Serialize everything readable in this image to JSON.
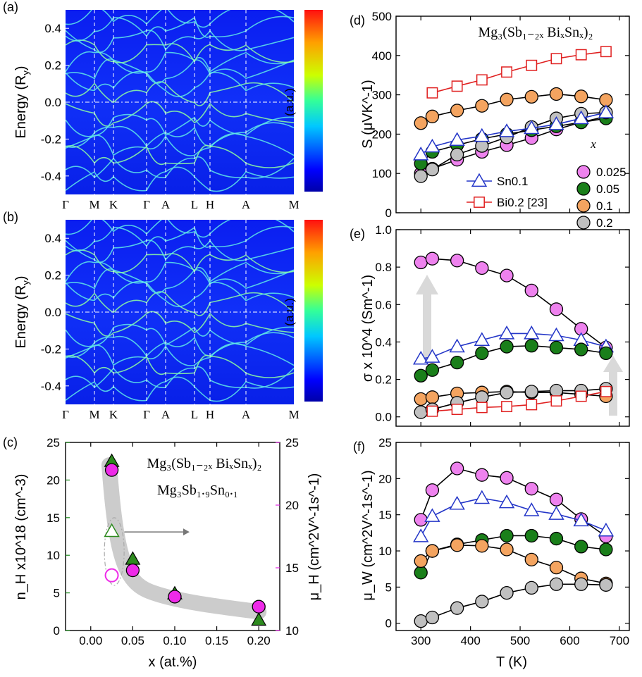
{
  "chart_data": [
    {
      "panel_label": "(a)",
      "type": "heatmap",
      "ylabel": "Energy (R",
      "ylabel_sub": "y",
      "ylim": [
        -0.5,
        0.5
      ],
      "yticks": [
        "0.4",
        "0.2",
        "0.0",
        "-0.2",
        "-0.4"
      ],
      "kpoints": [
        "Γ",
        "M",
        "K",
        "Γ",
        "A",
        "L",
        "H",
        "A",
        "M"
      ],
      "colorbar_label": "(a.u.)"
    },
    {
      "panel_label": "(b)",
      "type": "heatmap",
      "ylabel": "Energy (R",
      "ylabel_sub": "y",
      "ylim": [
        -0.5,
        0.5
      ],
      "yticks": [
        "0.4",
        "0.2",
        "0.0",
        "-0.2",
        "-0.4"
      ],
      "kpoints": [
        "Γ",
        "M",
        "K",
        "Γ",
        "A",
        "L",
        "H",
        "A",
        "M"
      ],
      "colorbar_label": "(a.u.)"
    },
    {
      "panel_label": "(c)",
      "type": "scatter",
      "title": "Mg₃(Sb₁₋₂ₓ BiₓSnₓ)₂",
      "xlabel": "x (at.%)",
      "ylabel_left": "n_H x10^18 (cm^-3)",
      "ylabel_right": "μ_H (cm^2V^-1s^-1)",
      "xlim": [
        -0.03,
        0.225
      ],
      "ylim_left": [
        0,
        25
      ],
      "ylim_right": [
        10,
        25
      ],
      "xticks": [
        "0.00",
        "0.05",
        "0.10",
        "0.15",
        "0.20"
      ],
      "yticks_left": [
        "0",
        "5",
        "10",
        "15",
        "20",
        "25"
      ],
      "yticks_right": [
        "10",
        "15",
        "20",
        "25"
      ],
      "annotation": "Mg₃Sb₁.₉Sn₀.₁",
      "series": [
        {
          "name": "n_H",
          "axis": "left",
          "color": "#2e8b1f",
          "marker": "triangle",
          "x": [
            0.025,
            0.05,
            0.1,
            0.2
          ],
          "y": [
            22.5,
            9.5,
            4.9,
            1.4
          ]
        },
        {
          "name": "μ_H",
          "axis": "right",
          "color": "#ee2ae8",
          "marker": "circle",
          "x": [
            0.025,
            0.05,
            0.1,
            0.2
          ],
          "y": [
            22.8,
            14.8,
            12.7,
            11.9
          ]
        },
        {
          "name": "Sn0.1 n_H",
          "axis": "left",
          "color": "#2e8b1f",
          "marker": "open-triangle",
          "x": [
            0.025
          ],
          "y": [
            13.2
          ]
        },
        {
          "name": "Sn0.1 μ_H",
          "axis": "right",
          "color": "#ee2ae8",
          "marker": "open-circle",
          "x": [
            0.025
          ],
          "y": [
            14.4
          ]
        }
      ]
    },
    {
      "panel_label": "(d)",
      "type": "line",
      "title": "Mg₃(Sb₁₋₂ₓ BiₓSnₓ)₂",
      "ylabel": "S (μVK^-1)",
      "xlim": [
        250,
        720
      ],
      "ylim": [
        0,
        500
      ],
      "yticks": [
        "0",
        "100",
        "200",
        "300",
        "400",
        "500"
      ],
      "legend_title": "x",
      "legend_position": "bottom-right",
      "x": [
        300,
        323,
        373,
        423,
        473,
        523,
        573,
        623,
        673
      ],
      "series": [
        {
          "name": "0.025",
          "color": "#ee82ee",
          "marker": "circle",
          "values": [
            100,
            112,
            135,
            155,
            172,
            190,
            212,
            230,
            245
          ]
        },
        {
          "name": "0.05",
          "color": "#1a7f1a",
          "marker": "circle",
          "values": [
            125,
            155,
            172,
            188,
            200,
            210,
            220,
            230,
            240
          ]
        },
        {
          "name": "0.1",
          "color": "#f4a460",
          "marker": "circle",
          "values": [
            228,
            245,
            260,
            272,
            288,
            295,
            302,
            296,
            287
          ]
        },
        {
          "name": "0.2",
          "color": "#c0c0c0",
          "marker": "circle",
          "values": [
            93,
            110,
            148,
            170,
            192,
            218,
            240,
            252,
            255
          ]
        },
        {
          "name": "Sn0.1",
          "color": "#2436c8",
          "marker": "open-triangle",
          "x": [
            300,
            323,
            373,
            423,
            473,
            523,
            573,
            623,
            673
          ],
          "values": [
            148,
            168,
            185,
            195,
            207,
            215,
            225,
            240,
            255
          ]
        },
        {
          "name": "Bi0.2 [23]",
          "color": "#e02020",
          "marker": "open-square",
          "x": [
            323,
            373,
            423,
            473,
            523,
            573,
            623,
            673
          ],
          "values": [
            305,
            322,
            338,
            358,
            375,
            392,
            402,
            410
          ]
        }
      ]
    },
    {
      "panel_label": "(e)",
      "type": "line",
      "ylabel": "σ x 10^4 (Sm^-1)",
      "xlim": [
        250,
        720
      ],
      "ylim": [
        -0.05,
        1.0
      ],
      "yticks": [
        "0.0",
        "0.2",
        "0.4",
        "0.6",
        "0.8",
        "1.0"
      ],
      "x": [
        300,
        323,
        373,
        423,
        473,
        523,
        573,
        623,
        673
      ],
      "series": [
        {
          "name": "0.025",
          "color": "#ee82ee",
          "marker": "circle",
          "values": [
            0.825,
            0.845,
            0.835,
            0.795,
            0.755,
            0.675,
            0.575,
            0.47,
            0.37
          ]
        },
        {
          "name": "Sn0.1",
          "color": "#2436c8",
          "marker": "open-triangle",
          "values": [
            0.31,
            0.32,
            0.375,
            0.41,
            0.445,
            0.445,
            0.435,
            0.41,
            0.375
          ]
        },
        {
          "name": "0.05",
          "color": "#1a7f1a",
          "marker": "circle",
          "values": [
            0.22,
            0.25,
            0.29,
            0.34,
            0.375,
            0.38,
            0.37,
            0.36,
            0.34
          ]
        },
        {
          "name": "0.1",
          "color": "#f4a460",
          "marker": "circle",
          "values": [
            0.095,
            0.105,
            0.125,
            0.13,
            0.135,
            0.13,
            0.13,
            0.12,
            0.11
          ]
        },
        {
          "name": "0.2",
          "color": "#c0c0c0",
          "marker": "circle",
          "values": [
            0.025,
            0.04,
            0.075,
            0.105,
            0.13,
            0.135,
            0.14,
            0.14,
            0.15
          ]
        },
        {
          "name": "Bi0.2 [23]",
          "color": "#e02020",
          "marker": "open-square",
          "x": [
            323,
            373,
            423,
            473,
            523,
            573,
            623,
            673
          ],
          "values": [
            0.03,
            0.04,
            0.05,
            0.055,
            0.065,
            0.085,
            0.11,
            0.135
          ]
        }
      ]
    },
    {
      "panel_label": "(f)",
      "type": "line",
      "ylabel": "μ_W (cm^2V^-1s^-1)",
      "xlabel": "T (K)",
      "xlim": [
        250,
        720
      ],
      "ylim": [
        -1,
        25
      ],
      "xticks": [
        "300",
        "400",
        "500",
        "600",
        "700"
      ],
      "yticks": [
        "0",
        "5",
        "10",
        "15",
        "20",
        "25"
      ],
      "x": [
        300,
        323,
        373,
        423,
        473,
        523,
        573,
        623,
        673
      ],
      "series": [
        {
          "name": "0.025",
          "color": "#ee82ee",
          "marker": "circle",
          "values": [
            14.3,
            18.4,
            21.4,
            20.5,
            20.1,
            18.6,
            17.1,
            14.4,
            12.0
          ]
        },
        {
          "name": "Sn0.1",
          "color": "#2436c8",
          "marker": "open-triangle",
          "values": [
            12.0,
            14.8,
            16.5,
            17.3,
            16.7,
            15.6,
            15.1,
            14.2,
            12.8
          ]
        },
        {
          "name": "0.05",
          "color": "#1a7f1a",
          "marker": "circle",
          "values": [
            7.0,
            10.0,
            10.9,
            11.5,
            12.1,
            12.1,
            11.7,
            10.6,
            10.2
          ]
        },
        {
          "name": "0.1",
          "color": "#f4a460",
          "marker": "circle",
          "values": [
            8.6,
            10.0,
            10.8,
            10.7,
            10.2,
            8.8,
            7.7,
            6.2,
            5.5
          ]
        },
        {
          "name": "0.2",
          "color": "#c0c0c0",
          "marker": "circle",
          "values": [
            0.3,
            0.8,
            2.1,
            3.0,
            4.2,
            4.9,
            5.4,
            5.4,
            5.3
          ]
        }
      ]
    }
  ]
}
